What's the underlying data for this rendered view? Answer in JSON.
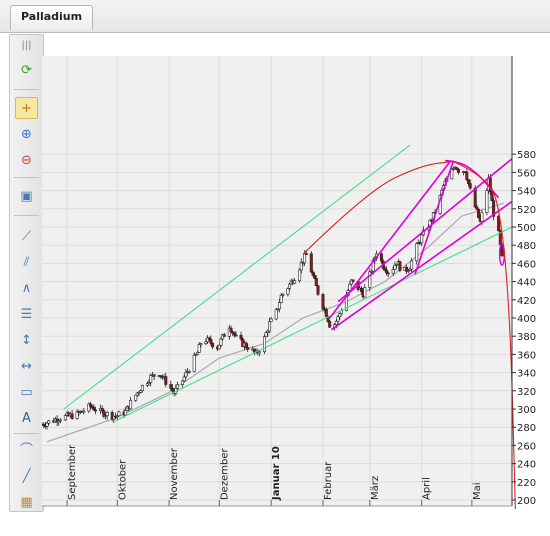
{
  "tab": {
    "label": "Palladium"
  },
  "toolbar": {
    "items": [
      {
        "name": "grip-icon",
        "glyph": "|||"
      },
      {
        "name": "refresh-icon",
        "glyph": "⟳",
        "color": "#3b9a2b"
      },
      {
        "name": "crosshair-icon",
        "glyph": "+",
        "color": "#c07a00",
        "active": true
      },
      {
        "name": "zoom-in-icon",
        "glyph": "⊕",
        "color": "#3a7ac9"
      },
      {
        "name": "zoom-out-icon",
        "glyph": "⊖",
        "color": "#c9443a"
      },
      {
        "name": "screenshot-icon",
        "glyph": "▣",
        "color": "#4a79b6"
      },
      {
        "name": "trendline-icon",
        "glyph": "⟋",
        "color": "#4a79b6"
      },
      {
        "name": "channel-icon",
        "glyph": "⫽",
        "color": "#4a79b6"
      },
      {
        "name": "angle-icon",
        "glyph": "∧",
        "color": "#4a79b6"
      },
      {
        "name": "fibonacci-icon",
        "glyph": "☰",
        "color": "#4a79b6"
      },
      {
        "name": "vertical-line-icon",
        "glyph": "↕",
        "color": "#4a79b6"
      },
      {
        "name": "horizontal-line-icon",
        "glyph": "↔",
        "color": "#4a79b6"
      },
      {
        "name": "rectangle-icon",
        "glyph": "▭",
        "color": "#4a79b6"
      },
      {
        "name": "text-icon",
        "glyph": "A",
        "color": "#2f5f9f"
      },
      {
        "name": "arc-icon",
        "glyph": "⌒",
        "color": "#4a79b6"
      },
      {
        "name": "line-icon",
        "glyph": "╱",
        "color": "#4a79b6"
      },
      {
        "name": "grid-icon",
        "glyph": "▦",
        "color": "#c98a2a"
      }
    ]
  },
  "chart_data": {
    "type": "candlestick",
    "title": "",
    "xlabel": "",
    "ylabel": "",
    "ylim": [
      190,
      590
    ],
    "yticks": [
      200,
      220,
      240,
      260,
      280,
      300,
      320,
      340,
      360,
      380,
      400,
      420,
      440,
      460,
      480,
      500,
      520,
      540,
      560,
      580
    ],
    "xrange": [
      "2009-08-17",
      "2010-05-25"
    ],
    "x_tick_labels": [
      {
        "label": "September",
        "date": "2009-09-01",
        "bold": false
      },
      {
        "label": "Oktober",
        "date": "2009-10-01",
        "bold": false
      },
      {
        "label": "November",
        "date": "2009-11-01",
        "bold": false
      },
      {
        "label": "Dezember",
        "date": "2009-12-01",
        "bold": false
      },
      {
        "label": "Januar 10",
        "date": "2010-01-01",
        "bold": true
      },
      {
        "label": "Februar",
        "date": "2010-02-01",
        "bold": false
      },
      {
        "label": "März",
        "date": "2010-03-01",
        "bold": false
      },
      {
        "label": "April",
        "date": "2010-04-01",
        "bold": false
      },
      {
        "label": "Mai",
        "date": "2010-05-01",
        "bold": false
      }
    ],
    "grid": true,
    "y_axis_position": "right",
    "price_path": [
      [
        "2009-08-17",
        283
      ],
      [
        "2009-08-27",
        290
      ],
      [
        "2009-09-07",
        294
      ],
      [
        "2009-09-15",
        303
      ],
      [
        "2009-09-22",
        296
      ],
      [
        "2009-09-30",
        292
      ],
      [
        "2009-10-06",
        297
      ],
      [
        "2009-10-10",
        310
      ],
      [
        "2009-10-15",
        323
      ],
      [
        "2009-10-21",
        335
      ],
      [
        "2009-10-26",
        340
      ],
      [
        "2009-10-30",
        330
      ],
      [
        "2009-11-04",
        318
      ],
      [
        "2009-11-08",
        328
      ],
      [
        "2009-11-13",
        345
      ],
      [
        "2009-11-18",
        362
      ],
      [
        "2009-11-21",
        378
      ],
      [
        "2009-11-25",
        374
      ],
      [
        "2009-11-30",
        368
      ],
      [
        "2009-12-04",
        382
      ],
      [
        "2009-12-07",
        392
      ],
      [
        "2009-12-11",
        378
      ],
      [
        "2009-12-15",
        372
      ],
      [
        "2009-12-19",
        367
      ],
      [
        "2009-12-23",
        360
      ],
      [
        "2009-12-27",
        372
      ],
      [
        "2009-12-31",
        394
      ],
      [
        "2010-01-03",
        400
      ],
      [
        "2010-01-07",
        424
      ],
      [
        "2010-01-11",
        434
      ],
      [
        "2010-01-15",
        445
      ],
      [
        "2010-01-19",
        460
      ],
      [
        "2010-01-22",
        470
      ],
      [
        "2010-01-26",
        446
      ],
      [
        "2010-01-30",
        422
      ],
      [
        "2010-02-03",
        405
      ],
      [
        "2010-02-06",
        387
      ],
      [
        "2010-02-10",
        400
      ],
      [
        "2010-02-14",
        420
      ],
      [
        "2010-02-18",
        440
      ],
      [
        "2010-02-22",
        433
      ],
      [
        "2010-02-25",
        427
      ],
      [
        "2010-03-01",
        447
      ],
      [
        "2010-03-05",
        473
      ],
      [
        "2010-03-09",
        458
      ],
      [
        "2010-03-13",
        449
      ],
      [
        "2010-03-17",
        462
      ],
      [
        "2010-03-21",
        450
      ],
      [
        "2010-03-25",
        457
      ],
      [
        "2010-03-29",
        478
      ],
      [
        "2010-04-02",
        493
      ],
      [
        "2010-04-06",
        505
      ],
      [
        "2010-04-10",
        520
      ],
      [
        "2010-04-14",
        545
      ],
      [
        "2010-04-18",
        558
      ],
      [
        "2010-04-21",
        568
      ],
      [
        "2010-04-24",
        560
      ],
      [
        "2010-04-27",
        563
      ],
      [
        "2010-04-30",
        540
      ],
      [
        "2010-05-03",
        522
      ],
      [
        "2010-05-06",
        505
      ],
      [
        "2010-05-09",
        530
      ],
      [
        "2010-05-11",
        552
      ],
      [
        "2010-05-14",
        515
      ],
      [
        "2010-05-17",
        492
      ],
      [
        "2010-05-19",
        465
      ]
    ],
    "moving_average": [
      [
        "2009-08-20",
        264
      ],
      [
        "2009-09-30",
        290
      ],
      [
        "2009-11-01",
        318
      ],
      [
        "2009-12-01",
        356
      ],
      [
        "2009-12-28",
        372
      ],
      [
        "2010-01-20",
        400
      ],
      [
        "2010-02-15",
        418
      ],
      [
        "2010-03-10",
        440
      ],
      [
        "2010-04-05",
        478
      ],
      [
        "2010-04-25",
        512
      ],
      [
        "2010-05-20",
        526
      ]
    ],
    "drawings": [
      {
        "color": "#44dd88",
        "points": [
          [
            "2009-08-30",
            300
          ],
          [
            "2010-03-25",
            590
          ]
        ]
      },
      {
        "color": "#44dd88",
        "points": [
          [
            "2009-09-30",
            287
          ],
          [
            "2010-05-25",
            500
          ]
        ]
      },
      {
        "color": "#dd2222",
        "points": [
          [
            "2010-01-20",
            470
          ],
          [
            "2010-02-28",
            540
          ],
          [
            "2010-04-01",
            568
          ],
          [
            "2010-04-20",
            572
          ]
        ]
      },
      {
        "color": "#dd2222",
        "points": [
          [
            "2010-04-20",
            572
          ],
          [
            "2010-05-10",
            555
          ],
          [
            "2010-05-18",
            520
          ],
          [
            "2010-05-24",
            400
          ],
          [
            "2010-05-27",
            190
          ]
        ]
      },
      {
        "color": "#dd00dd",
        "points": [
          [
            "2010-02-06",
            387
          ],
          [
            "2010-05-25",
            528
          ]
        ]
      },
      {
        "color": "#dd00dd",
        "points": [
          [
            "2010-02-10",
            418
          ],
          [
            "2010-05-25",
            575
          ]
        ]
      },
      {
        "color": "#dd00dd",
        "points": [
          [
            "2010-02-05",
            400
          ],
          [
            "2010-04-18",
            572
          ]
        ]
      },
      {
        "color": "#dd00dd",
        "points": [
          [
            "2010-03-28",
            448
          ],
          [
            "2010-04-20",
            573
          ]
        ]
      },
      {
        "color": "#dd00dd",
        "points": [
          [
            "2010-04-15",
            573
          ],
          [
            "2010-04-24",
            572
          ],
          [
            "2010-05-05",
            558
          ],
          [
            "2010-05-17",
            532
          ]
        ]
      }
    ],
    "annotations": [
      {
        "type": "ellipse",
        "color": "#dd00dd",
        "date": "2010-05-19",
        "value": 470,
        "rx_days": 1.4,
        "ry_value": 12
      }
    ]
  }
}
